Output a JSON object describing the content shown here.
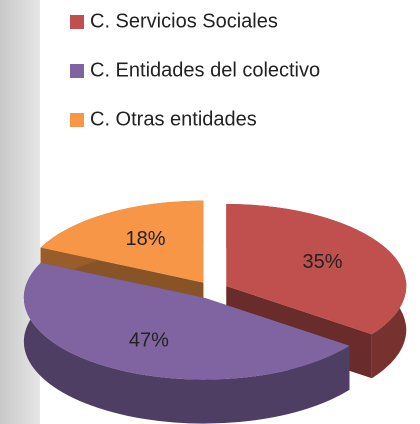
{
  "chart_data": {
    "type": "pie",
    "categories": [
      "C. Servicios Sociales",
      "C. Entidades del colectivo",
      "C. Otras entidades"
    ],
    "values": [
      35,
      47,
      18
    ],
    "value_labels": [
      "35%",
      "47%",
      "18%"
    ],
    "colors": [
      "#c0504d",
      "#8064a2",
      "#f79646"
    ],
    "legend": "top"
  }
}
